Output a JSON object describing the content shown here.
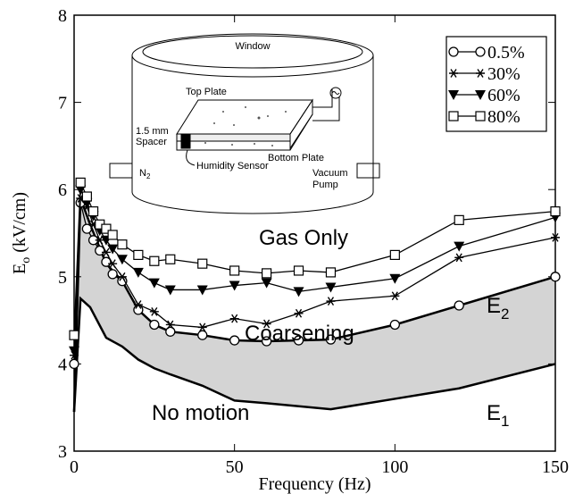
{
  "chart_data": {
    "type": "line",
    "x_label": "Frequency (Hz)",
    "y_label": {
      "main": "E",
      "sub": "o",
      "rest": " (kV/cm)"
    },
    "xlim": [
      0,
      150
    ],
    "xticks": [
      0,
      50,
      100,
      150
    ],
    "ylim": [
      3,
      8
    ],
    "yticks": [
      3,
      4,
      5,
      6,
      7,
      8
    ],
    "x": [
      0,
      2,
      4,
      6,
      8,
      10,
      12,
      15,
      20,
      25,
      30,
      40,
      50,
      60,
      70,
      80,
      100,
      120,
      150
    ],
    "series": [
      {
        "name": "0.5%",
        "color": "#000000",
        "marker": "circle",
        "values": [
          4.0,
          5.85,
          5.55,
          5.42,
          5.3,
          5.17,
          5.03,
          4.95,
          4.62,
          4.45,
          4.37,
          4.33,
          4.27,
          4.26,
          4.27,
          4.28,
          4.45,
          4.67,
          5.0
        ]
      },
      {
        "name": "30%",
        "color": "#000000",
        "marker": "star",
        "values": [
          4.1,
          5.9,
          5.8,
          5.6,
          5.42,
          5.28,
          5.15,
          5.0,
          4.68,
          4.6,
          4.45,
          4.42,
          4.52,
          4.46,
          4.58,
          4.72,
          4.78,
          5.22,
          5.45
        ]
      },
      {
        "name": "60%",
        "color": "#000000",
        "marker": "triangle",
        "values": [
          4.15,
          6.0,
          5.85,
          5.7,
          5.53,
          5.42,
          5.32,
          5.2,
          5.05,
          4.93,
          4.85,
          4.85,
          4.9,
          4.93,
          4.83,
          4.88,
          4.98,
          5.35,
          5.68
        ]
      },
      {
        "name": "80%",
        "color": "#000000",
        "marker": "square",
        "values": [
          4.33,
          6.08,
          5.92,
          5.75,
          5.6,
          5.55,
          5.48,
          5.37,
          5.25,
          5.18,
          5.2,
          5.15,
          5.07,
          5.04,
          5.07,
          5.05,
          5.25,
          5.65,
          5.75
        ]
      }
    ],
    "boundaries": {
      "x": [
        0,
        2,
        5,
        10,
        15,
        20,
        25,
        30,
        40,
        50,
        60,
        80,
        100,
        120,
        150
      ],
      "lower": [
        3.45,
        4.75,
        4.65,
        4.3,
        4.2,
        4.05,
        3.95,
        3.88,
        3.75,
        3.58,
        3.55,
        3.48,
        3.6,
        3.72,
        4.0
      ],
      "upper": [
        3.45,
        5.9,
        5.6,
        5.15,
        4.95,
        4.62,
        4.45,
        4.37,
        4.33,
        4.27,
        4.26,
        4.28,
        4.45,
        4.67,
        5.0
      ],
      "fill": "#d4d4d4",
      "lower_label": {
        "main": "E",
        "sub": "1"
      },
      "upper_label": {
        "main": "E",
        "sub": "2"
      }
    },
    "annotations": [
      "Gas Only",
      "Coarsening",
      "No motion"
    ],
    "legend": "upper right",
    "inset": {
      "window": "Window",
      "top_plate": "Top Plate",
      "spacer_size": "1.5 mm",
      "spacer": "Spacer",
      "bottom_plate": "Bottom Plate",
      "sensor": "Humidity Sensor",
      "gas": {
        "main": "N",
        "sub": "2"
      },
      "pump_1": "Vacuum",
      "pump_2": "Pump"
    }
  }
}
